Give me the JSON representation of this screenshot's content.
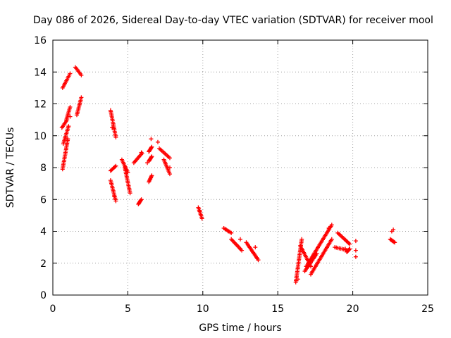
{
  "chart_data": {
    "type": "scatter",
    "title": "Day 086 of 2026, Sidereal Day-to-day VTEC variation (SDTVAR) for receiver mool",
    "xlabel": "GPS time / hours",
    "ylabel": "SDTVAR / TECUs",
    "xlim": [
      0,
      25
    ],
    "ylim": [
      0,
      16
    ],
    "xticks": [
      "0",
      "5",
      "10",
      "15",
      "20",
      "25"
    ],
    "yticks": [
      "0",
      "2",
      "4",
      "6",
      "8",
      "10",
      "12",
      "14",
      "16"
    ],
    "xtick_values": [
      0,
      5,
      10,
      15,
      20,
      25
    ],
    "ytick_values": [
      0,
      2,
      4,
      6,
      8,
      10,
      12,
      14,
      16
    ],
    "grid": true,
    "marker": "+",
    "color": "#ff0000",
    "segments": [
      {
        "x0": 0.65,
        "x1": 1.15,
        "y0": 13.0,
        "y1": 13.9
      },
      {
        "x0": 1.5,
        "x1": 1.9,
        "y0": 14.3,
        "y1": 13.8
      },
      {
        "x0": 1.6,
        "x1": 1.9,
        "y0": 11.3,
        "y1": 12.4
      },
      {
        "x0": 0.6,
        "x1": 0.95,
        "y0": 10.5,
        "y1": 11.0
      },
      {
        "x0": 0.7,
        "x1": 1.05,
        "y0": 9.5,
        "y1": 10.6
      },
      {
        "x0": 0.65,
        "x1": 1.0,
        "y0": 7.9,
        "y1": 9.8
      },
      {
        "x0": 0.9,
        "x1": 1.15,
        "y0": 11.0,
        "y1": 11.8
      },
      {
        "x0": 3.85,
        "x1": 4.2,
        "y0": 11.6,
        "y1": 9.9
      },
      {
        "x0": 3.85,
        "x1": 4.2,
        "y0": 7.8,
        "y1": 8.1
      },
      {
        "x0": 3.85,
        "x1": 4.2,
        "y0": 7.2,
        "y1": 5.9
      },
      {
        "x0": 4.6,
        "x1": 5.0,
        "y0": 8.5,
        "y1": 7.7
      },
      {
        "x0": 4.8,
        "x1": 5.15,
        "y0": 8.0,
        "y1": 6.4
      },
      {
        "x0": 5.4,
        "x1": 5.95,
        "y0": 8.3,
        "y1": 8.9
      },
      {
        "x0": 5.7,
        "x1": 5.9,
        "y0": 5.7,
        "y1": 6.0
      },
      {
        "x0": 6.4,
        "x1": 6.6,
        "y0": 9.0,
        "y1": 9.3
      },
      {
        "x0": 6.4,
        "x1": 6.6,
        "y0": 8.4,
        "y1": 8.7
      },
      {
        "x0": 6.4,
        "x1": 6.6,
        "y0": 7.1,
        "y1": 7.5
      },
      {
        "x0": 7.1,
        "x1": 7.8,
        "y0": 9.2,
        "y1": 8.6
      },
      {
        "x0": 7.4,
        "x1": 7.8,
        "y0": 8.5,
        "y1": 7.6
      },
      {
        "x0": 9.7,
        "x1": 9.95,
        "y0": 5.5,
        "y1": 4.8
      },
      {
        "x0": 11.4,
        "x1": 11.9,
        "y0": 4.2,
        "y1": 3.9
      },
      {
        "x0": 11.9,
        "x1": 12.6,
        "y0": 3.5,
        "y1": 2.8
      },
      {
        "x0": 12.9,
        "x1": 13.7,
        "y0": 3.3,
        "y1": 2.2
      },
      {
        "x0": 16.2,
        "x1": 16.6,
        "y0": 0.8,
        "y1": 3.5
      },
      {
        "x0": 16.5,
        "x1": 17.2,
        "y0": 3.1,
        "y1": 1.8
      },
      {
        "x0": 16.9,
        "x1": 18.6,
        "y0": 1.8,
        "y1": 4.4
      },
      {
        "x0": 17.2,
        "x1": 18.6,
        "y0": 1.3,
        "y1": 3.5
      },
      {
        "x0": 16.8,
        "x1": 17.6,
        "y0": 1.5,
        "y1": 2.6
      },
      {
        "x0": 19.0,
        "x1": 19.8,
        "y0": 3.9,
        "y1": 3.2
      },
      {
        "x0": 18.8,
        "x1": 19.7,
        "y0": 3.0,
        "y1": 2.8
      },
      {
        "x0": 19.6,
        "x1": 19.8,
        "y0": 2.7,
        "y1": 2.9
      },
      {
        "x0": 22.5,
        "x1": 22.8,
        "y0": 3.5,
        "y1": 3.3
      }
    ],
    "points": [
      [
        7.0,
        9.6
      ],
      [
        6.55,
        9.8
      ],
      [
        6.3,
        8.3
      ],
      [
        12.5,
        3.5
      ],
      [
        13.5,
        3.0
      ],
      [
        20.2,
        3.4
      ],
      [
        20.2,
        2.8
      ],
      [
        20.2,
        2.4
      ],
      [
        22.6,
        4.0
      ],
      [
        22.7,
        4.1
      ],
      [
        11.7,
        4.0
      ],
      [
        9.8,
        5.3
      ],
      [
        3.95,
        10.5
      ],
      [
        1.15,
        11.2
      ],
      [
        5.9,
        8.95
      ],
      [
        4.1,
        6.2
      ],
      [
        7.8,
        8.0
      ],
      [
        16.35,
        1.0
      ],
      [
        18.4,
        4.2
      ],
      [
        19.5,
        2.9
      ]
    ]
  }
}
